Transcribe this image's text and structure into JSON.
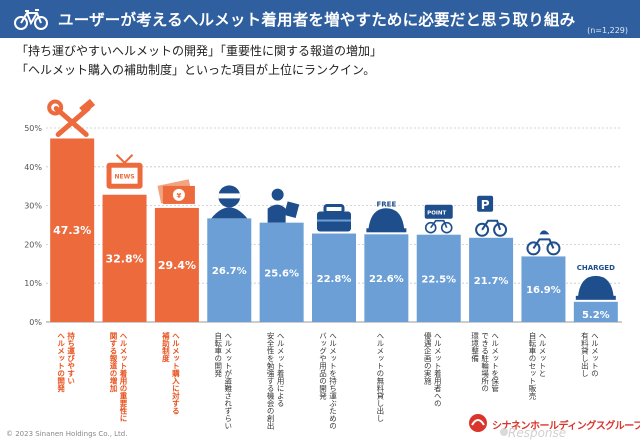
{
  "header": {
    "title": "ユーザーが考えるヘルメット着用者を増やすために必要だと思う取り組み",
    "sample": "(n=1,229)"
  },
  "lead": {
    "line1": "「持ち運びやすいヘルメットの開発」「重要性に関する報道の増加」",
    "line2": "「ヘルメット購入の補助制度」といった項目が上位にランクイン。"
  },
  "icons": {
    "free_label": "FREE",
    "point_label": "POINT",
    "parking_label": "P",
    "charged_label": "CHARGED",
    "news_label": "NEWS"
  },
  "colors": {
    "highlight": "#ec6a3c",
    "normal": "#6b9fd6",
    "header": "#2f5f9e",
    "highlight_text": "#e8531f"
  },
  "chart_data": {
    "type": "bar",
    "categories": [
      "持ち運びやすいヘルメットの開発",
      "ヘルメット着用の重要性に関する報道の増加",
      "ヘルメット購入に対する補助制度",
      "ヘルメットが盗難されずらい自転車の開発",
      "ヘルメット着用による安全性を勉強する機会の創出",
      "ヘルメットを持ち運ぶためのバッグや用品の開発",
      "ヘルメットの無料貸し出し",
      "ヘルメット着用者への優遇企画の実施",
      "ヘルメットを保管できる駐輪場所の環境整備",
      "ヘルメットと自転車のセット販売",
      "ヘルメットの有料貸し出し"
    ],
    "label_lines": [
      [
        "持ち運びやすい",
        "ヘルメットの開発"
      ],
      [
        "ヘルメット着用の重要性に",
        "関する報道の増加"
      ],
      [
        "ヘルメット購入に対する",
        "補助制度"
      ],
      [
        "ヘルメットが盗難されずらい",
        "自転車の開発"
      ],
      [
        "ヘルメット着用による",
        "安全性を勉強する機会の創出"
      ],
      [
        "ヘルメットを持ち運ぶための",
        "バッグや用品の開発"
      ],
      [
        "ヘルメットの無料貸し出し"
      ],
      [
        "ヘルメット着用者への",
        "優遇企画の実施"
      ],
      [
        "ヘルメットを保管",
        "できる駐輪場所の",
        "環境整備"
      ],
      [
        "ヘルメットと",
        "自転車のセット販売"
      ],
      [
        "ヘルメットの",
        "有料貸し出し"
      ]
    ],
    "values": [
      47.3,
      32.8,
      29.4,
      26.7,
      25.6,
      22.8,
      22.6,
      22.5,
      21.7,
      16.9,
      5.2
    ],
    "value_labels": [
      "47.3%",
      "32.8%",
      "29.4%",
      "26.7%",
      "25.6%",
      "22.8%",
      "22.6%",
      "22.5%",
      "21.7%",
      "16.9%",
      "5.2%"
    ],
    "highlight_count": 3,
    "ylim": [
      0,
      50
    ],
    "yticks": [
      0,
      10,
      20,
      30,
      40,
      50
    ],
    "ytick_labels": [
      "0%",
      "10%",
      "20%",
      "30%",
      "40%",
      "50%"
    ],
    "grid": true
  },
  "footer": {
    "copyright": "© 2023 Sinanen Holdings Co., Ltd.",
    "brand": "シナネンホールディングスグループ",
    "watermark": "Response"
  }
}
